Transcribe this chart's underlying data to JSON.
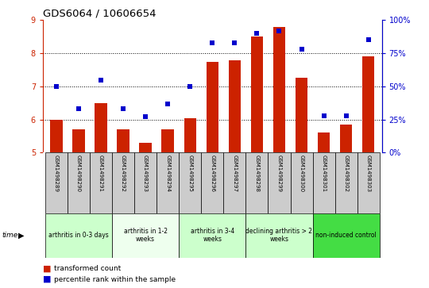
{
  "title": "GDS6064 / 10606654",
  "samples": [
    "GSM1498289",
    "GSM1498290",
    "GSM1498291",
    "GSM1498292",
    "GSM1498293",
    "GSM1498294",
    "GSM1498295",
    "GSM1498296",
    "GSM1498297",
    "GSM1498298",
    "GSM1498299",
    "GSM1498300",
    "GSM1498301",
    "GSM1498302",
    "GSM1498303"
  ],
  "bar_values": [
    6.0,
    5.7,
    6.5,
    5.7,
    5.3,
    5.7,
    6.05,
    7.75,
    7.8,
    8.5,
    8.8,
    7.25,
    5.6,
    5.85,
    7.9
  ],
  "dot_pct": [
    50,
    33,
    55,
    33,
    27,
    37,
    50,
    83,
    83,
    90,
    92,
    78,
    28,
    28,
    85
  ],
  "groups": [
    {
      "label": "arthritis in 0-3 days",
      "start": 0,
      "end": 3,
      "color": "#ccffcc"
    },
    {
      "label": "arthritis in 1-2\nweeks",
      "start": 3,
      "end": 6,
      "color": "#eeffee"
    },
    {
      "label": "arthritis in 3-4\nweeks",
      "start": 6,
      "end": 9,
      "color": "#ccffcc"
    },
    {
      "label": "declining arthritis > 2\nweeks",
      "start": 9,
      "end": 12,
      "color": "#ccffcc"
    },
    {
      "label": "non-induced control",
      "start": 12,
      "end": 15,
      "color": "#44dd44"
    }
  ],
  "ylim_left": [
    5,
    9
  ],
  "ylim_right": [
    0,
    100
  ],
  "yticks_left": [
    5,
    6,
    7,
    8,
    9
  ],
  "yticks_right": [
    0,
    25,
    50,
    75,
    100
  ],
  "ytick_labels_right": [
    "0%",
    "25%",
    "50%",
    "75%",
    "100%"
  ],
  "bar_color": "#cc2200",
  "dot_color": "#0000cc",
  "bar_bottom": 5,
  "sample_box_color": "#cccccc",
  "grid_yticks": [
    6,
    7,
    8
  ]
}
